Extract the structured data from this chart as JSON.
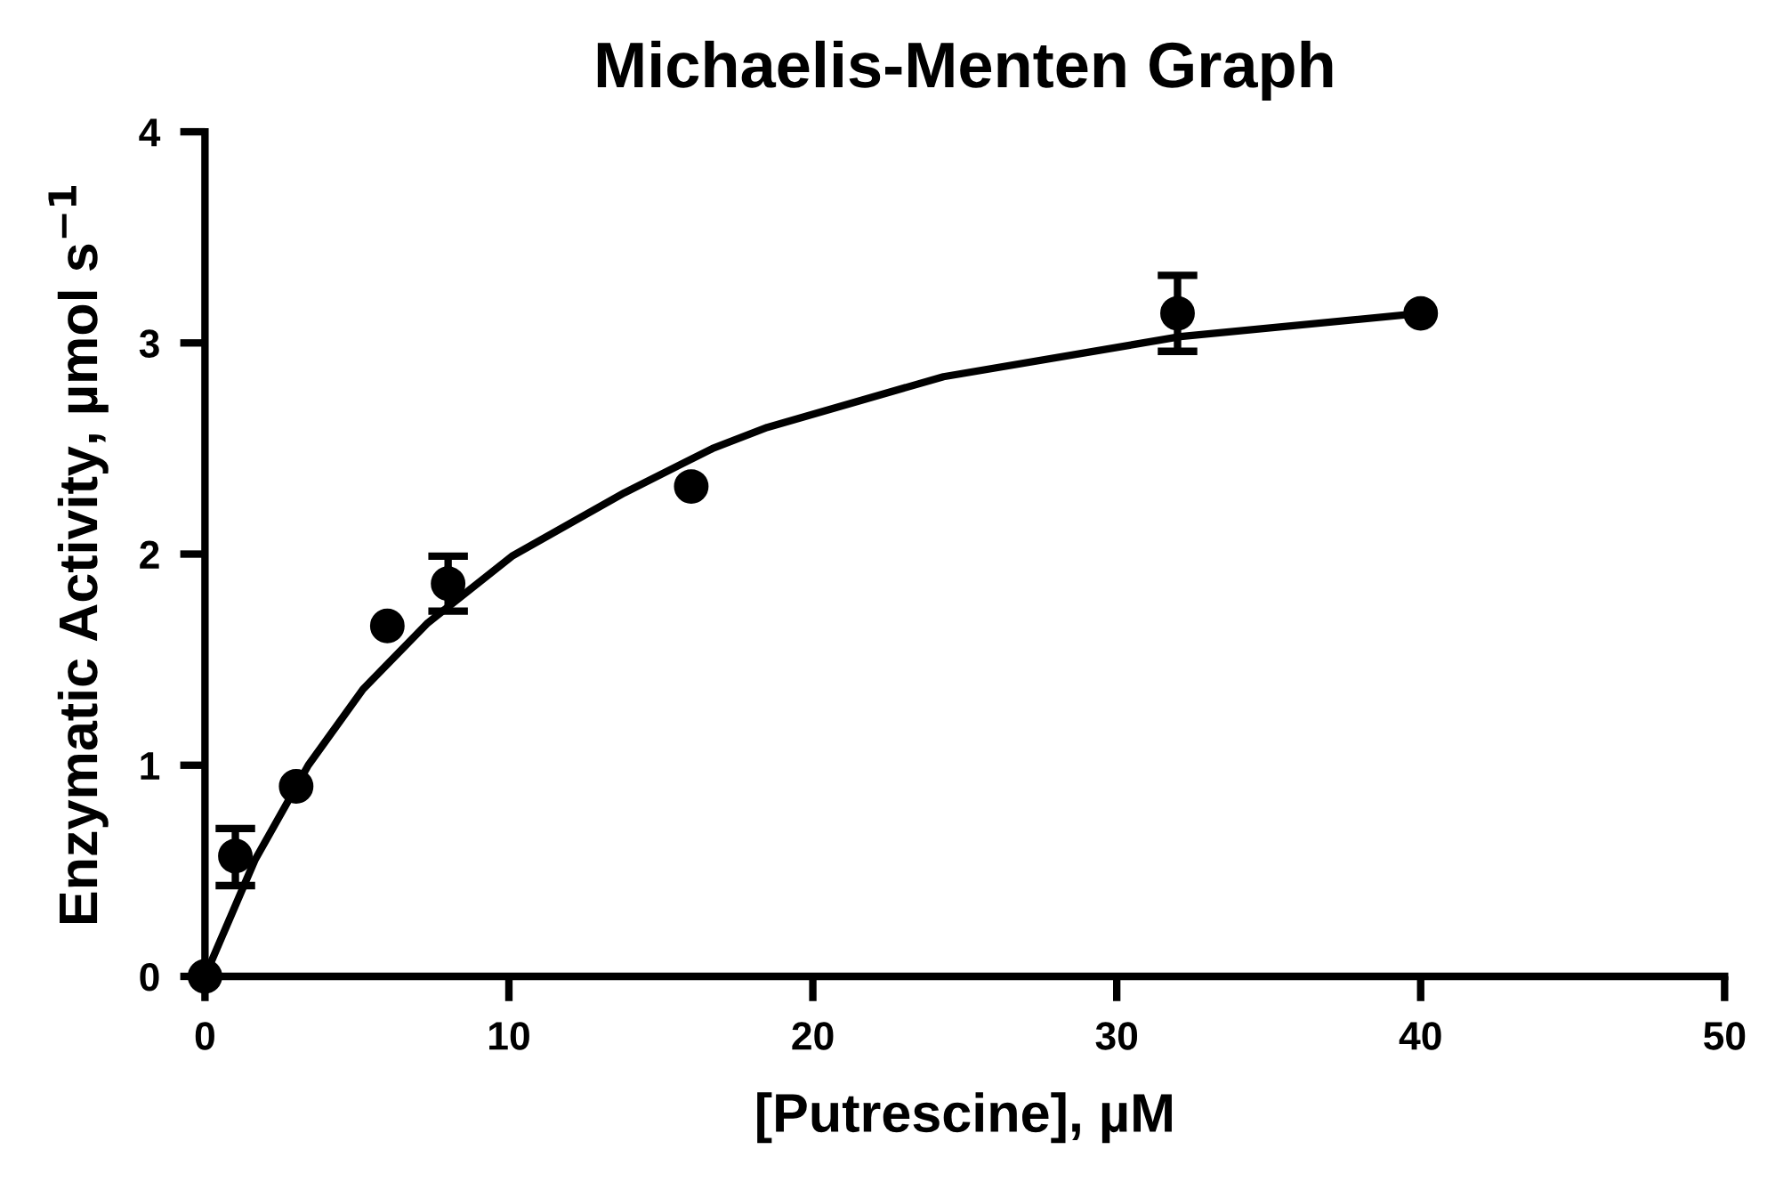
{
  "chart_data": {
    "type": "scatter",
    "title": "Michaelis-Menten Graph",
    "xlabel": "[Putrescine], µM",
    "ylabel": "Enzymatic Activity, µmol s$^{−1}$",
    "series": [
      {
        "color": "#000000",
        "marker": "circle",
        "x": [
          0,
          1,
          3,
          6,
          8,
          16,
          32,
          40
        ],
        "values": [
          0,
          0.57,
          0.9,
          1.66,
          1.86,
          2.32,
          3.14,
          3.14
        ],
        "errors": [
          null,
          [
            0.43,
            0.7
          ],
          null,
          null,
          [
            1.73,
            1.99
          ],
          null,
          [
            2.96,
            3.32
          ],
          null
        ]
      },
      {
        "type": "line",
        "color": "#000000",
        "x": [
          0,
          1.64,
          3.4,
          5.2,
          7.3,
          10.1,
          13.8,
          16.7,
          18.5,
          24.3,
          32.1,
          40
        ],
        "values": [
          0,
          0.55,
          1.0,
          1.36,
          1.67,
          1.99,
          2.29,
          2.5,
          2.6,
          2.84,
          3.03,
          3.14
        ]
      }
    ],
    "xlim": [
      0,
      50
    ],
    "xticks": [
      0,
      10,
      20,
      30,
      40,
      50
    ],
    "ylim": [
      0,
      4
    ],
    "yticks": [
      0,
      1,
      2,
      3,
      4
    ],
    "grid": false
  }
}
